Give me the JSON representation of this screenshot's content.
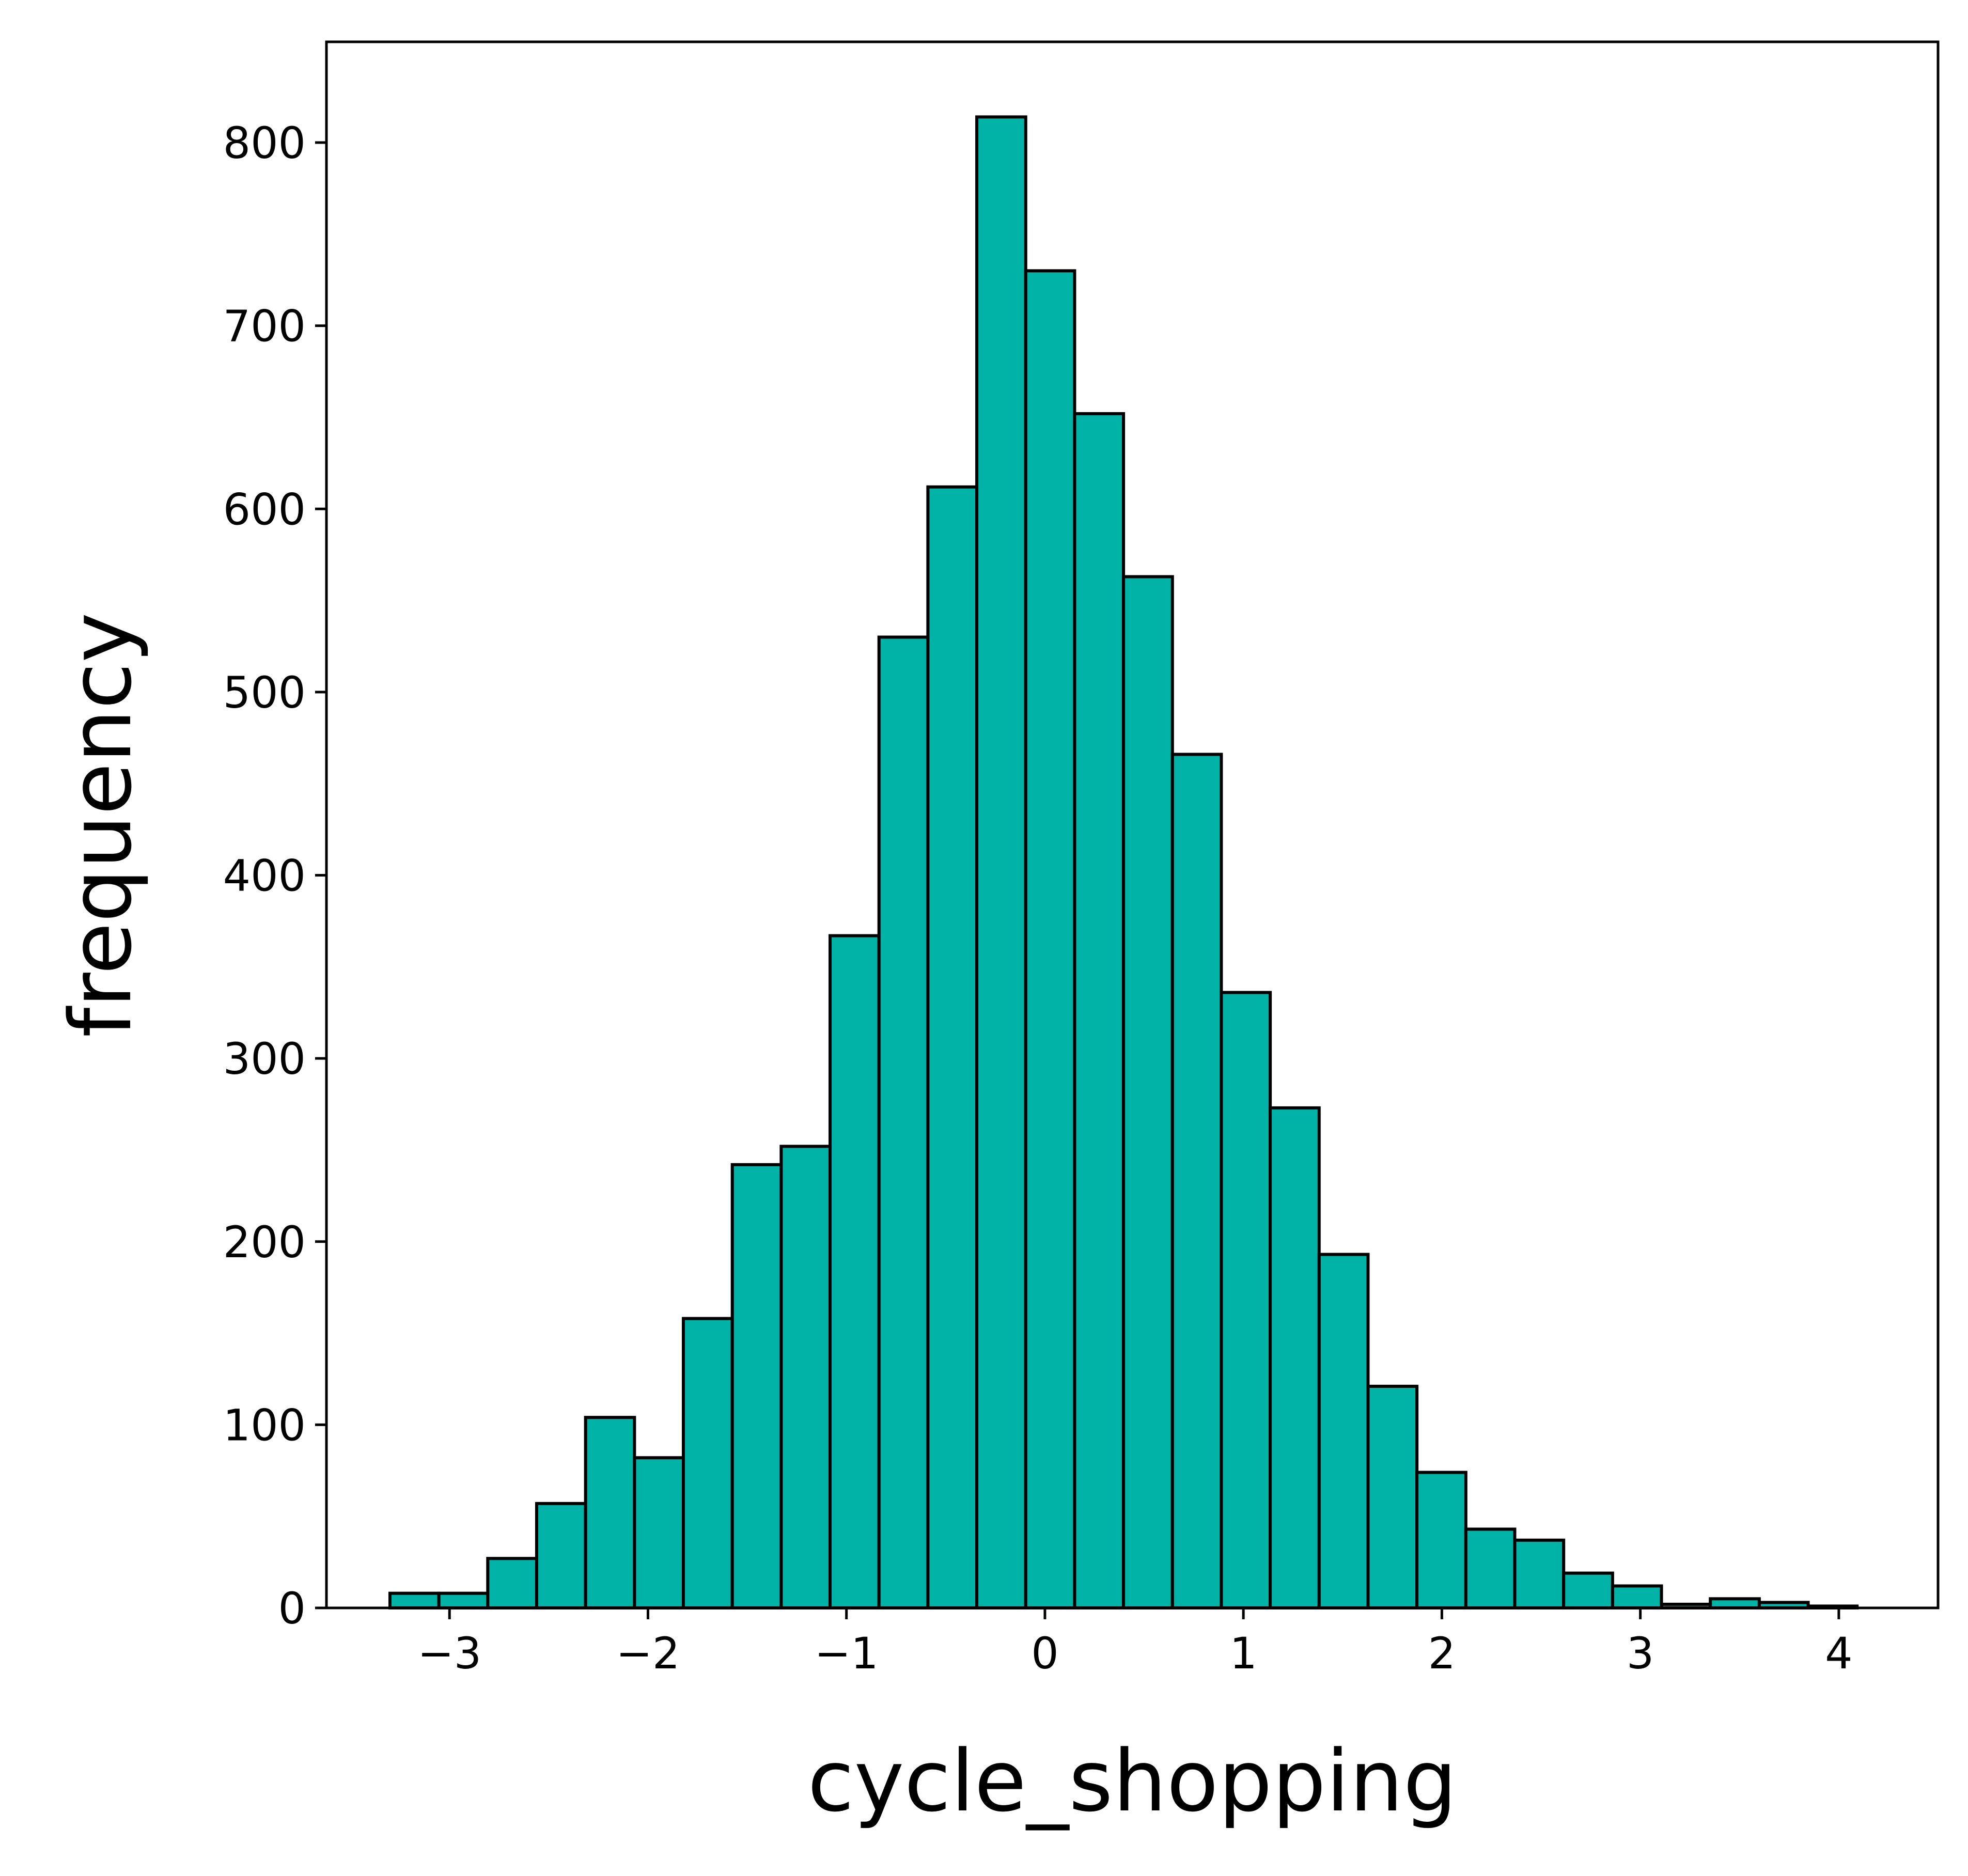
{
  "chart_data": {
    "type": "bar",
    "subtype": "histogram",
    "xlabel": "cycle_shopping",
    "ylabel": "frequency",
    "xlim": [
      -3.62,
      4.5
    ],
    "ylim": [
      0,
      855
    ],
    "grid": false,
    "x_ticks": [
      -3,
      -2,
      -1,
      0,
      1,
      2,
      3,
      4
    ],
    "x_tick_labels": [
      "−3",
      "−2",
      "−1",
      "0",
      "1",
      "2",
      "3",
      "4"
    ],
    "y_ticks": [
      0,
      100,
      200,
      300,
      400,
      500,
      600,
      700,
      800
    ],
    "y_tick_labels": [
      "0",
      "100",
      "200",
      "300",
      "400",
      "500",
      "600",
      "700",
      "800"
    ],
    "bin_start": -3.3,
    "bin_width": 0.2464,
    "values": [
      8,
      8,
      27,
      57,
      104,
      82,
      158,
      242,
      252,
      367,
      530,
      612,
      814,
      730,
      652,
      563,
      466,
      336,
      273,
      193,
      121,
      74,
      43,
      37,
      19,
      12,
      2,
      5,
      3,
      1
    ],
    "colors": {
      "bar_fill": "#00b3a6",
      "bar_edge": "#000000",
      "axes": "#000000"
    }
  }
}
